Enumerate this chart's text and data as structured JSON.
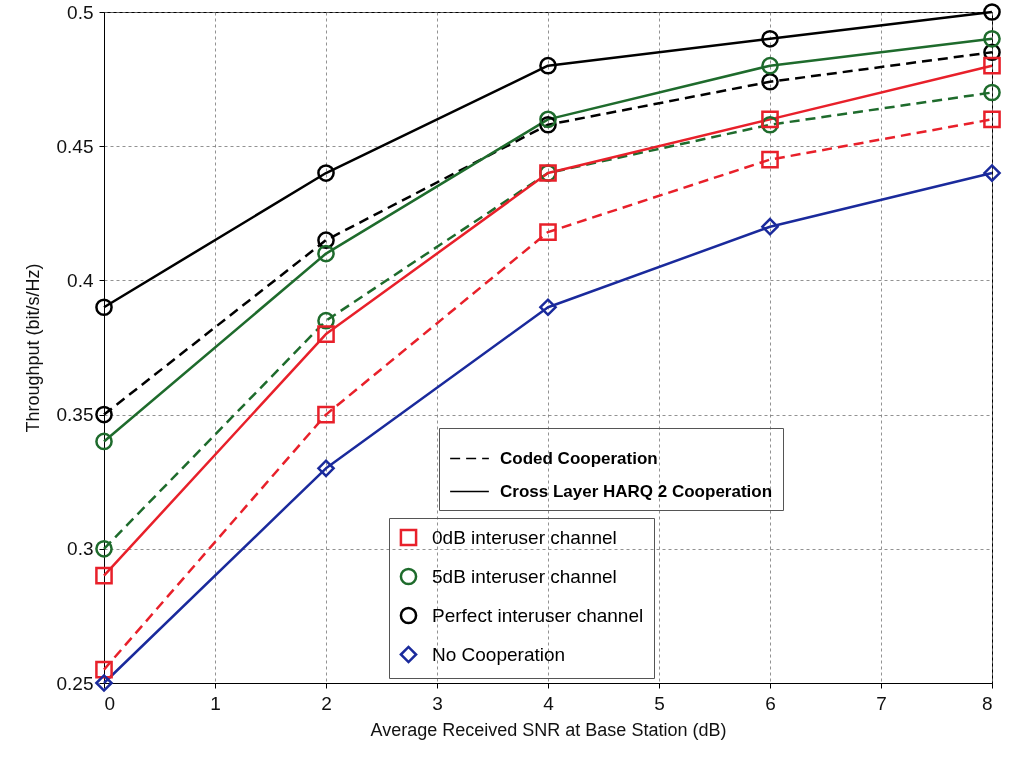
{
  "chart_data": {
    "type": "line",
    "xlabel": "Average Received SNR at Base Station (dB)",
    "ylabel": "Throughput (bit/s/Hz)",
    "x": [
      0,
      2,
      4,
      6,
      8
    ],
    "series": [
      {
        "color": "#e8202a",
        "marker": "square",
        "line_style": "dashed",
        "values": [
          0.255,
          0.35,
          0.418,
          0.445,
          0.46
        ]
      },
      {
        "color": "#1e6b2c",
        "marker": "circle",
        "line_style": "dashed",
        "values": [
          0.3,
          0.385,
          0.44,
          0.458,
          0.47
        ]
      },
      {
        "color": "#000000",
        "marker": "circle",
        "line_style": "dashed",
        "values": [
          0.35,
          0.415,
          0.458,
          0.474,
          0.485
        ]
      },
      {
        "name": "0dB interuser channel",
        "color": "#e8202a",
        "marker": "square",
        "line_style": "solid",
        "values": [
          0.29,
          0.38,
          0.44,
          0.46,
          0.48
        ]
      },
      {
        "name": "5dB interuser channel",
        "color": "#1e6b2c",
        "marker": "circle",
        "line_style": "solid",
        "values": [
          0.34,
          0.41,
          0.46,
          0.48,
          0.49
        ]
      },
      {
        "name": "Perfect interuser channel",
        "color": "#000000",
        "marker": "circle",
        "line_style": "solid",
        "values": [
          0.39,
          0.44,
          0.48,
          0.49,
          0.5
        ]
      },
      {
        "name": "No Cooperation",
        "color": "#1a2a9c",
        "marker": "diamond",
        "line_style": "solid",
        "values": [
          0.25,
          0.33,
          0.39,
          0.42,
          0.44
        ]
      }
    ],
    "annotations": [
      "Coded Cooperation",
      "Cross Layer HARQ 2 Cooperation"
    ],
    "xlim": [
      0,
      8
    ],
    "xticks": [
      0,
      1,
      2,
      3,
      4,
      5,
      6,
      7,
      8
    ],
    "ylim": [
      0.25,
      0.5
    ],
    "yticks": [
      0.25,
      0.3,
      0.35,
      0.4,
      0.45,
      0.5
    ],
    "grid": true,
    "legend": "bottom right"
  }
}
